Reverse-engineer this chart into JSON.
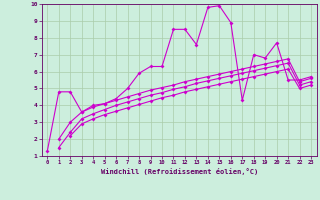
{
  "xlabel": "Windchill (Refroidissement éolien,°C)",
  "background_color": "#cceedd",
  "line_color": "#cc00cc",
  "grid_color": "#aaccaa",
  "xlim": [
    -0.5,
    23.5
  ],
  "ylim": [
    1,
    10
  ],
  "xticks": [
    0,
    1,
    2,
    3,
    4,
    5,
    6,
    7,
    8,
    9,
    10,
    11,
    12,
    13,
    14,
    15,
    16,
    17,
    18,
    19,
    20,
    21,
    22,
    23
  ],
  "yticks": [
    1,
    2,
    3,
    4,
    5,
    6,
    7,
    8,
    9,
    10
  ],
  "line1_x": [
    0,
    1,
    2,
    3,
    4,
    5,
    6,
    7,
    8,
    9,
    10,
    11,
    12,
    13,
    14,
    15,
    16,
    17,
    18,
    19,
    20,
    21,
    22,
    23
  ],
  "line1_y": [
    1.3,
    4.8,
    4.8,
    3.6,
    4.0,
    4.1,
    4.4,
    5.0,
    5.9,
    6.3,
    6.3,
    8.5,
    8.5,
    7.6,
    9.8,
    9.9,
    8.9,
    4.3,
    7.0,
    6.8,
    7.7,
    5.5,
    5.5,
    5.7
  ],
  "line2_x": [
    1,
    2,
    3,
    4,
    5,
    6,
    7,
    8,
    9,
    10,
    11,
    12,
    13,
    14,
    15,
    16,
    17,
    18,
    19,
    20,
    21,
    22,
    23
  ],
  "line2_y": [
    2.0,
    3.0,
    3.6,
    3.9,
    4.1,
    4.3,
    4.5,
    4.7,
    4.9,
    5.05,
    5.2,
    5.4,
    5.55,
    5.7,
    5.85,
    6.0,
    6.15,
    6.3,
    6.45,
    6.6,
    6.75,
    5.4,
    5.6
  ],
  "line3_x": [
    1,
    2,
    3,
    4,
    5,
    6,
    7,
    8,
    9,
    10,
    11,
    12,
    13,
    14,
    15,
    16,
    17,
    18,
    19,
    20,
    21,
    22,
    23
  ],
  "line3_y": [
    1.5,
    2.4,
    3.2,
    3.5,
    3.75,
    4.0,
    4.2,
    4.4,
    4.6,
    4.75,
    4.95,
    5.1,
    5.3,
    5.45,
    5.6,
    5.75,
    5.9,
    6.05,
    6.2,
    6.35,
    6.5,
    5.2,
    5.4
  ],
  "line4_x": [
    2,
    3,
    4,
    5,
    6,
    7,
    8,
    9,
    10,
    11,
    12,
    13,
    14,
    15,
    16,
    17,
    18,
    19,
    20,
    21,
    22,
    23
  ],
  "line4_y": [
    2.2,
    2.9,
    3.2,
    3.45,
    3.65,
    3.85,
    4.05,
    4.25,
    4.45,
    4.6,
    4.8,
    4.95,
    5.1,
    5.25,
    5.4,
    5.55,
    5.7,
    5.85,
    6.0,
    6.15,
    5.0,
    5.2
  ]
}
